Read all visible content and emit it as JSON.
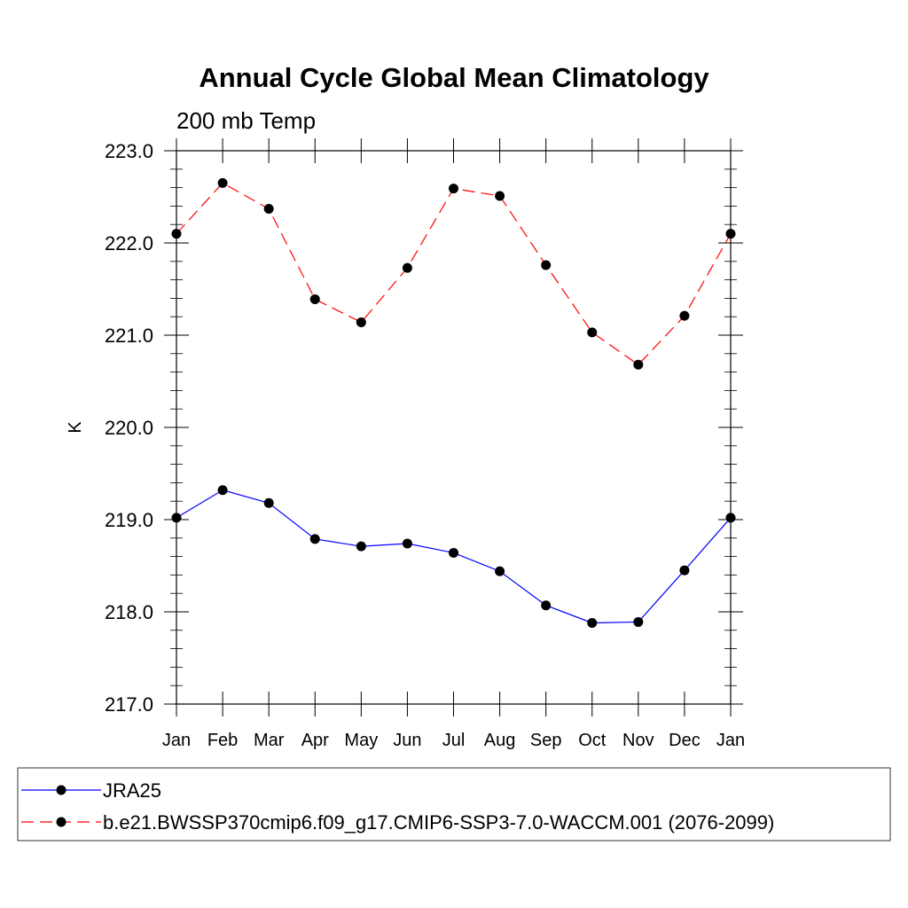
{
  "chart_data": {
    "type": "line",
    "title": "Annual Cycle Global Mean Climatology",
    "subtitle": "200 mb Temp",
    "xlabel": "",
    "ylabel": "K",
    "categories": [
      "Jan",
      "Feb",
      "Mar",
      "Apr",
      "May",
      "Jun",
      "Jul",
      "Aug",
      "Sep",
      "Oct",
      "Nov",
      "Dec",
      "Jan"
    ],
    "ylim": [
      217.0,
      223.0
    ],
    "y_ticks": [
      "217.0",
      "218.0",
      "219.0",
      "220.0",
      "221.0",
      "222.0",
      "223.0"
    ],
    "series": [
      {
        "name": "JRA25",
        "color": "#0000ff",
        "dash": "solid",
        "values": [
          219.02,
          219.32,
          219.18,
          218.79,
          218.71,
          218.74,
          218.64,
          218.44,
          218.07,
          217.88,
          217.89,
          218.45,
          219.02
        ]
      },
      {
        "name": "b.e21.BWSSP370cmip6.f09_g17.CMIP6-SSP3-7.0-WACCM.001 (2076-2099)",
        "color": "#ff0000",
        "dash": "dashed",
        "values": [
          222.1,
          222.65,
          222.37,
          221.39,
          221.14,
          221.73,
          222.59,
          222.51,
          221.76,
          221.03,
          220.68,
          221.21,
          222.1
        ]
      }
    ],
    "legend_position": "bottom"
  }
}
